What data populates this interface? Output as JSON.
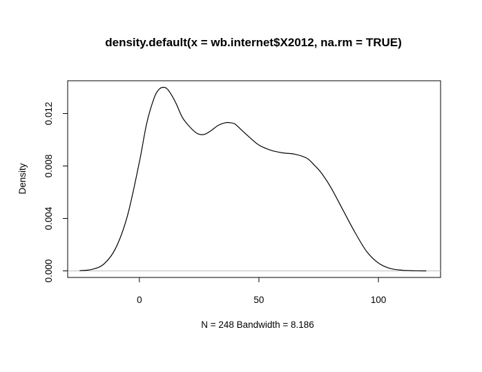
{
  "chart_data": {
    "type": "line",
    "title": "density.default(x = wb.internet$X2012, na.rm = TRUE)",
    "xlabel": "N = 248   Bandwidth = 8.186",
    "ylabel": "Density",
    "xlim": [
      -30,
      126
    ],
    "ylim": [
      -0.0005,
      0.0145
    ],
    "x_ticks": [
      0,
      50,
      100
    ],
    "x_tick_labels": [
      "0",
      "50",
      "100"
    ],
    "y_ticks": [
      0.0,
      0.004,
      0.008,
      0.012
    ],
    "y_tick_labels": [
      "0.000",
      "0.004",
      "0.008",
      "0.012"
    ],
    "baseline": 0,
    "grid": false,
    "series": [
      {
        "color": "#000000",
        "x": [
          -25,
          -20,
          -15,
          -10,
          -5,
          0,
          3,
          6,
          8,
          10,
          12,
          15,
          18,
          21,
          24,
          27,
          30,
          33,
          36,
          38,
          40,
          43,
          46,
          50,
          55,
          60,
          65,
          70,
          73,
          76,
          80,
          85,
          90,
          95,
          100,
          105,
          110,
          115,
          120
        ],
        "values": [
          2e-05,
          0.00011,
          0.0005,
          0.0017,
          0.0042,
          0.0083,
          0.0112,
          0.0131,
          0.0138,
          0.014,
          0.0138,
          0.0129,
          0.0117,
          0.011,
          0.0105,
          0.0104,
          0.0107,
          0.0111,
          0.0113,
          0.0113,
          0.0112,
          0.0107,
          0.0102,
          0.0096,
          0.0092,
          0.009,
          0.0089,
          0.0086,
          0.0081,
          0.0075,
          0.0064,
          0.0047,
          0.003,
          0.0015,
          0.0006,
          0.00018,
          5e-05,
          1e-05,
          0.0
        ]
      }
    ]
  }
}
